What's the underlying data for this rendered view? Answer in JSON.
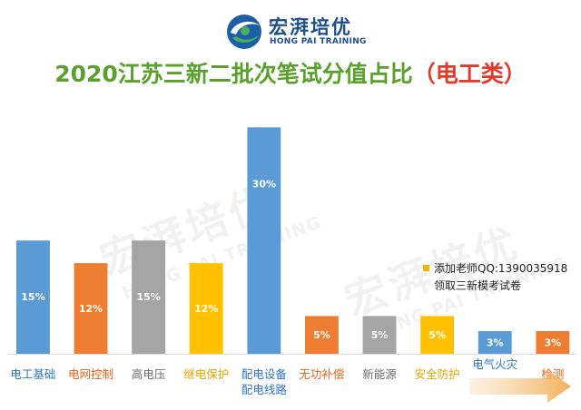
{
  "logo": {
    "name_cn": "宏湃培优",
    "name_en": "HONG PAI TRAINING"
  },
  "title": {
    "main": "2020江苏三新二批次笔试分值占比",
    "paren": "（电工类）"
  },
  "watermark": {
    "cn": "宏湃培优",
    "en": "HONG PAI TRAINING"
  },
  "promo": {
    "line1": "添加老师QQ:1390035918",
    "line2": "领取三新模考试卷"
  },
  "colors": {
    "blue": "#5b9bd5",
    "orange": "#ed7d31",
    "gray": "#a5a5a5",
    "yellow": "#ffc000",
    "title_green": "#5aa02c",
    "title_red": "#e23a2a"
  },
  "chart_data": {
    "type": "bar",
    "categories": [
      "电工基础",
      "电网控制",
      "高电压",
      "继电保护",
      "配电设备\n配电线路",
      "无功补偿",
      "新能源",
      "安全防护",
      "电气火灾",
      "检测"
    ],
    "values": [
      15,
      12,
      15,
      12,
      30,
      5,
      5,
      5,
      3,
      3
    ],
    "value_labels": [
      "15%",
      "12%",
      "15%",
      "12%",
      "30%",
      "5%",
      "5%",
      "5%",
      "3%",
      "3%"
    ],
    "bar_colors": [
      "#5b9bd5",
      "#ed7d31",
      "#a5a5a5",
      "#ffc000",
      "#5b9bd5",
      "#ed7d31",
      "#a5a5a5",
      "#ffc000",
      "#5b9bd5",
      "#ed7d31"
    ],
    "label_colors": [
      "#2e75c8",
      "#e3641b",
      "#6d6d6d",
      "#e0a400",
      "#2e75c8",
      "#e3641b",
      "#6d6d6d",
      "#e0a400",
      "#2e75c8",
      "#e3641b"
    ],
    "ylim": [
      0,
      31
    ],
    "grid": false,
    "legend": "none"
  }
}
